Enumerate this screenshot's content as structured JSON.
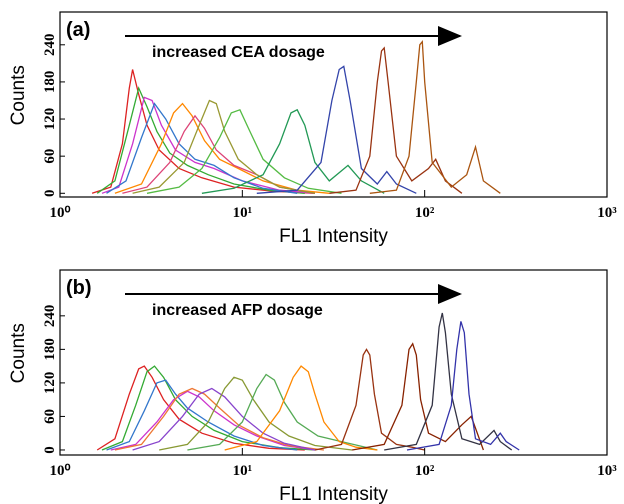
{
  "chart_data": [
    {
      "type": "line",
      "panel_label": "(a)",
      "annotation": "increased CEA dosage",
      "xlabel": "FL1 Intensity",
      "ylabel": "Counts",
      "xscale": "log",
      "xlim": [
        1,
        1000
      ],
      "xticks": [
        {
          "value": 1,
          "label": "10⁰"
        },
        {
          "value": 10,
          "label": "10¹"
        },
        {
          "value": 100,
          "label": "10²"
        },
        {
          "value": 1000,
          "label": "10³"
        }
      ],
      "ylim": [
        -6,
        293
      ],
      "yticks": [
        0,
        60,
        120,
        180,
        240
      ],
      "series": [
        {
          "color": "#dd2222",
          "x": [
            1.5,
            1.9,
            2.2,
            2.4,
            2.5,
            2.7,
            3,
            3.5,
            4.5,
            6,
            9,
            15,
            25
          ],
          "values": [
            0,
            10,
            80,
            170,
            200,
            160,
            110,
            70,
            40,
            25,
            10,
            3,
            0
          ]
        },
        {
          "color": "#33aa33",
          "x": [
            1.6,
            2,
            2.4,
            2.7,
            3,
            3.4,
            4,
            5,
            6.5,
            9,
            14,
            22
          ],
          "values": [
            0,
            20,
            110,
            170,
            140,
            100,
            65,
            45,
            30,
            15,
            5,
            0
          ]
        },
        {
          "color": "#cc33cc",
          "x": [
            1.7,
            2.1,
            2.5,
            2.9,
            3.2,
            3.6,
            4.3,
            5.5,
            7,
            10,
            16,
            25
          ],
          "values": [
            0,
            10,
            80,
            155,
            150,
            110,
            70,
            50,
            40,
            20,
            5,
            0
          ]
        },
        {
          "color": "#3377cc",
          "x": [
            1.8,
            2.3,
            2.8,
            3.3,
            3.8,
            4.5,
            5.5,
            7,
            9,
            13,
            20
          ],
          "values": [
            0,
            20,
            90,
            145,
            120,
            80,
            55,
            45,
            25,
            8,
            0
          ]
        },
        {
          "color": "#ff8800",
          "x": [
            2,
            2.8,
            3.6,
            4.2,
            4.7,
            5.3,
            6.2,
            7.5,
            9.5,
            13,
            20,
            30
          ],
          "values": [
            0,
            15,
            80,
            130,
            145,
            125,
            85,
            55,
            40,
            20,
            5,
            0
          ]
        },
        {
          "color": "#dd4477",
          "x": [
            2.2,
            3,
            4,
            4.8,
            5.5,
            6.2,
            7.2,
            9,
            12,
            16,
            25
          ],
          "values": [
            0,
            10,
            50,
            100,
            125,
            105,
            70,
            45,
            30,
            10,
            0
          ]
        },
        {
          "color": "#999933",
          "x": [
            2.5,
            3.5,
            4.8,
            5.8,
            6.6,
            7.2,
            8,
            9.5,
            12,
            16,
            25
          ],
          "values": [
            0,
            10,
            50,
            110,
            150,
            145,
            100,
            55,
            30,
            10,
            0
          ]
        },
        {
          "color": "#55bb44",
          "x": [
            3,
            4.5,
            6,
            7.5,
            8.7,
            9.7,
            11,
            13,
            17,
            23,
            35
          ],
          "values": [
            0,
            10,
            40,
            90,
            130,
            135,
            100,
            55,
            25,
            8,
            0
          ]
        },
        {
          "color": "#229955",
          "x": [
            6,
            9,
            13,
            16,
            18.5,
            20,
            22,
            25,
            30,
            38,
            45,
            60
          ],
          "values": [
            0,
            8,
            30,
            80,
            130,
            135,
            110,
            50,
            20,
            45,
            20,
            0
          ]
        },
        {
          "color": "#3344aa",
          "x": [
            12,
            20,
            27,
            31,
            34,
            36,
            39,
            45,
            55,
            62,
            70,
            90
          ],
          "values": [
            0,
            5,
            50,
            150,
            200,
            205,
            150,
            40,
            15,
            35,
            15,
            0
          ]
        },
        {
          "color": "#993311",
          "x": [
            30,
            42,
            50,
            55,
            58,
            60,
            63,
            70,
            85,
            105,
            115,
            130,
            160
          ],
          "values": [
            0,
            5,
            60,
            180,
            230,
            235,
            180,
            60,
            20,
            40,
            55,
            20,
            0
          ]
        },
        {
          "color": "#aa5511",
          "x": [
            50,
            70,
            82,
            90,
            94,
            97,
            100,
            110,
            140,
            170,
            190,
            210,
            260
          ],
          "values": [
            0,
            5,
            60,
            180,
            240,
            245,
            180,
            50,
            10,
            30,
            75,
            20,
            0
          ]
        }
      ]
    },
    {
      "type": "line",
      "panel_label": "(b)",
      "annotation": "increased AFP dosage",
      "xlabel": "FL1 Intensity",
      "ylabel": "Counts",
      "xscale": "log",
      "xlim": [
        1,
        1000
      ],
      "xticks": [
        {
          "value": 1,
          "label": "10⁰"
        },
        {
          "value": 10,
          "label": "10¹"
        },
        {
          "value": 100,
          "label": "10²"
        },
        {
          "value": 1000,
          "label": "10³"
        }
      ],
      "ylim": [
        -9,
        322
      ],
      "yticks": [
        0,
        60,
        120,
        180,
        240
      ],
      "series": [
        {
          "color": "#dd2222",
          "x": [
            1.6,
            2,
            2.4,
            2.7,
            2.9,
            3.2,
            3.7,
            4.5,
            6,
            9,
            14,
            22
          ],
          "values": [
            0,
            20,
            100,
            145,
            150,
            130,
            90,
            55,
            30,
            12,
            3,
            0
          ]
        },
        {
          "color": "#33aa33",
          "x": [
            1.7,
            2.2,
            2.6,
            3,
            3.3,
            3.7,
            4.3,
            5.3,
            7,
            10,
            16,
            25
          ],
          "values": [
            0,
            15,
            80,
            140,
            150,
            130,
            90,
            60,
            35,
            15,
            4,
            0
          ]
        },
        {
          "color": "#3377cc",
          "x": [
            1.8,
            2.4,
            2.9,
            3.4,
            3.8,
            4.3,
            5,
            6.5,
            9,
            13,
            20
          ],
          "values": [
            0,
            15,
            70,
            120,
            125,
            100,
            75,
            50,
            25,
            8,
            0
          ]
        },
        {
          "color": "#cc33cc",
          "x": [
            1.9,
            2.6,
            3.4,
            4.2,
            5,
            5.8,
            7,
            9,
            12,
            17,
            25
          ],
          "values": [
            0,
            10,
            50,
            90,
            105,
            95,
            70,
            45,
            25,
            8,
            0
          ]
        },
        {
          "color": "#ee7733",
          "x": [
            2,
            2.8,
            3.7,
            4.5,
            5.3,
            6.2,
            7.5,
            9.5,
            13,
            18,
            28
          ],
          "values": [
            0,
            10,
            60,
            100,
            110,
            100,
            75,
            45,
            22,
            8,
            0
          ]
        },
        {
          "color": "#8844cc",
          "x": [
            2.5,
            3.5,
            4.7,
            5.8,
            6.8,
            8,
            10,
            13,
            17,
            25
          ],
          "values": [
            0,
            15,
            60,
            100,
            110,
            95,
            60,
            30,
            12,
            0
          ]
        },
        {
          "color": "#889933",
          "x": [
            3.5,
            5,
            6.5,
            8,
            9,
            10,
            11.5,
            14,
            18,
            25,
            40
          ],
          "values": [
            0,
            10,
            50,
            110,
            130,
            125,
            90,
            50,
            25,
            8,
            0
          ]
        },
        {
          "color": "#55aa55",
          "x": [
            5,
            7.5,
            10,
            12,
            13.5,
            15,
            17,
            20,
            26,
            35,
            55
          ],
          "values": [
            0,
            10,
            50,
            110,
            135,
            125,
            85,
            50,
            25,
            15,
            0
          ]
        },
        {
          "color": "#ff8800",
          "x": [
            8,
            12,
            16,
            19,
            21,
            23,
            25,
            28,
            34,
            42,
            55
          ],
          "values": [
            0,
            15,
            70,
            130,
            150,
            140,
            100,
            50,
            15,
            5,
            0
          ]
        },
        {
          "color": "#993311",
          "x": [
            25,
            35,
            42,
            46,
            48,
            50,
            53,
            58,
            70,
            85,
            100
          ],
          "values": [
            0,
            10,
            80,
            170,
            180,
            170,
            100,
            30,
            10,
            5,
            0
          ]
        },
        {
          "color": "#882200",
          "x": [
            40,
            60,
            75,
            82,
            86,
            90,
            95,
            105,
            130,
            160,
            180,
            210
          ],
          "values": [
            0,
            10,
            80,
            180,
            190,
            170,
            90,
            30,
            15,
            45,
            60,
            0
          ]
        },
        {
          "color": "#333344",
          "x": [
            60,
            90,
            110,
            120,
            125,
            130,
            140,
            160,
            200,
            240,
            260,
            300
          ],
          "values": [
            0,
            10,
            80,
            220,
            245,
            210,
            100,
            20,
            10,
            35,
            15,
            0
          ]
        },
        {
          "color": "#3333aa",
          "x": [
            80,
            120,
            140,
            150,
            158,
            165,
            175,
            190,
            230,
            260,
            280,
            330
          ],
          "values": [
            0,
            10,
            80,
            180,
            230,
            210,
            100,
            20,
            10,
            30,
            15,
            0
          ]
        }
      ]
    }
  ]
}
